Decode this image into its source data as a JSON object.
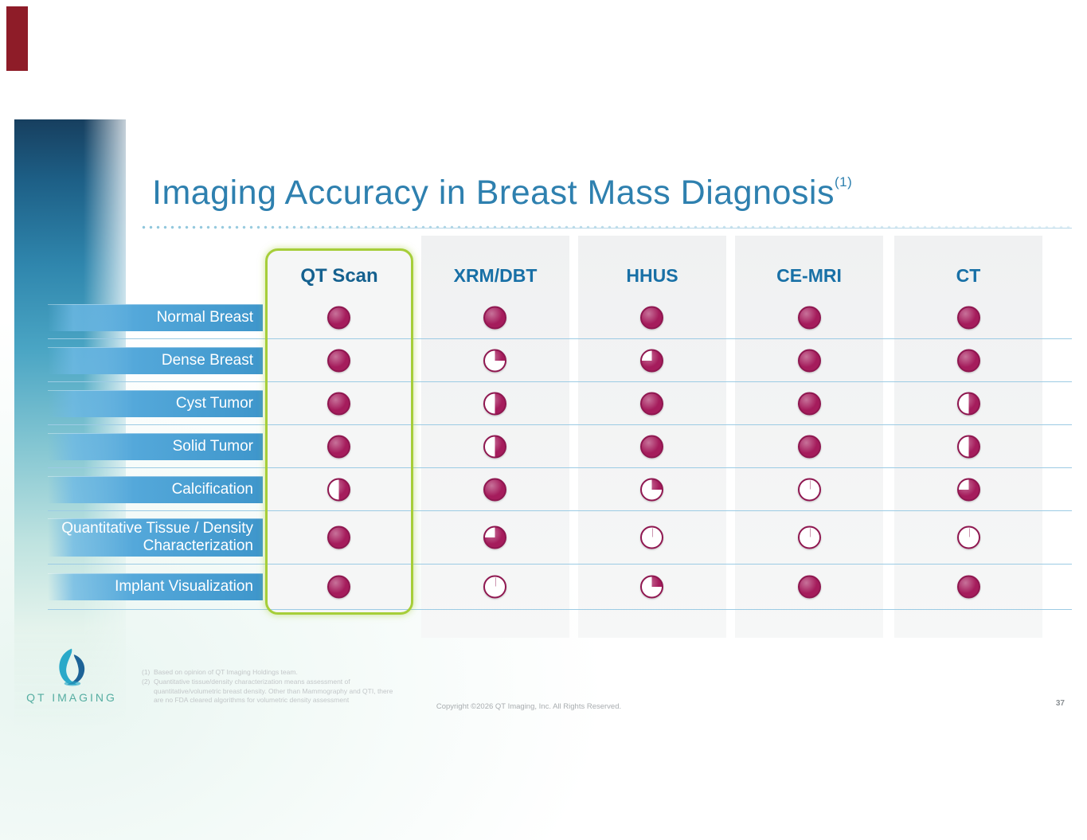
{
  "slide": {
    "title": "Imaging Accuracy in Breast Mass Diagnosis",
    "title_superscript": "(1)",
    "logo_text": "QT IMAGING",
    "copyright": "Copyright ©2026 QT Imaging, Inc. All Rights Reserved.",
    "page_number": "37",
    "footnotes": [
      {
        "marker": "(1)",
        "text": "Based on opinion of QT Imaging Holdings team."
      },
      {
        "marker": "(2)",
        "text": "Quantitative tissue/density characterization means assessment of quantitative/volumetric breast density. Other than Mammography and QTI, there are no FDA cleared algorithms for volumetric density assessment"
      }
    ]
  },
  "colors": {
    "title_blue": "#2E80AF",
    "header_blue": "#1870A6",
    "ball_fill": "#A51C5C",
    "ball_ring": "#8F1750",
    "row_bar_blue": "#3E96CB",
    "highlight_green": "#A6CE39"
  },
  "chart_data": {
    "type": "table",
    "title": "Imaging Accuracy in Breast Mass Diagnosis",
    "encoding": "harvey_ball_fill_fraction",
    "columns": [
      "QT Scan",
      "XRM/DBT",
      "HHUS",
      "CE-MRI",
      "CT"
    ],
    "highlighted_column": "QT Scan",
    "rows": [
      {
        "label": "Normal Breast",
        "values": [
          1,
          1,
          1,
          1,
          1
        ]
      },
      {
        "label": "Dense Breast",
        "values": [
          1,
          0.25,
          0.75,
          1,
          1
        ]
      },
      {
        "label": "Cyst Tumor",
        "values": [
          1,
          0.5,
          1,
          1,
          0.5
        ]
      },
      {
        "label": "Solid Tumor",
        "values": [
          1,
          0.5,
          1,
          1,
          0.5
        ]
      },
      {
        "label": "Calcification",
        "values": [
          0.5,
          1,
          0.25,
          0,
          0.75
        ]
      },
      {
        "label": "Quantitative Tissue / Density Characterization",
        "values": [
          1,
          0.75,
          0,
          0,
          0
        ]
      },
      {
        "label": "Implant Visualization",
        "values": [
          1,
          0,
          0.25,
          1,
          1
        ]
      }
    ]
  }
}
